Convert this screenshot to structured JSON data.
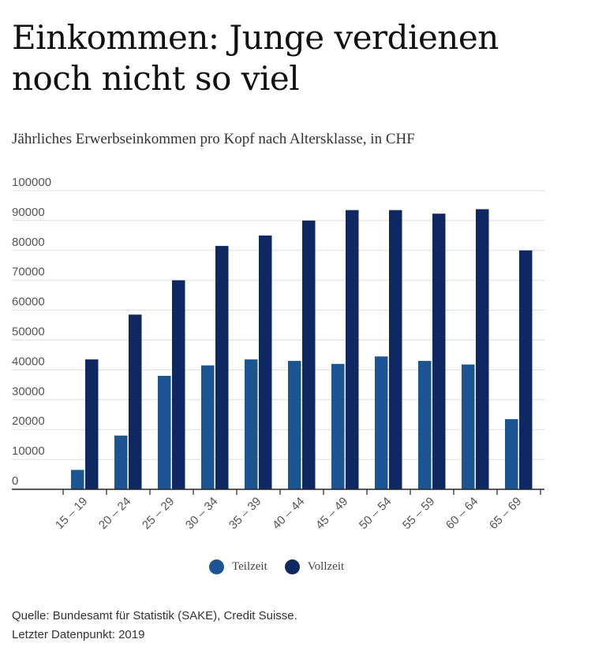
{
  "header": {
    "title": "Einkommen: Junge verdienen noch nicht so viel",
    "subtitle": "Jährliches Erwerbseinkommen pro Kopf nach Altersklasse, in CHF"
  },
  "chart_data": {
    "type": "bar",
    "categories": [
      "15 – 19",
      "20 – 24",
      "25 – 29",
      "30 – 34",
      "35 – 39",
      "40 – 44",
      "45 – 49",
      "50 – 54",
      "55 – 59",
      "60 – 64",
      "65 – 69"
    ],
    "series": [
      {
        "name": "Teilzeit",
        "color": "#1d5592",
        "values": [
          6500,
          18000,
          38000,
          41500,
          43500,
          43000,
          42000,
          44500,
          43000,
          41800,
          23500
        ]
      },
      {
        "name": "Vollzeit",
        "color": "#0f2862",
        "values": [
          43500,
          58500,
          70000,
          81500,
          85000,
          90000,
          93500,
          93500,
          92300,
          93800,
          80000
        ]
      }
    ],
    "yticks": [
      0,
      10000,
      20000,
      30000,
      40000,
      50000,
      60000,
      70000,
      80000,
      90000,
      100000
    ],
    "ylim": [
      0,
      100000
    ],
    "grid": true,
    "legend_position": "bottom-center"
  },
  "legend": {
    "items": [
      {
        "label": "Teilzeit",
        "color": "#1d5592"
      },
      {
        "label": "Vollzeit",
        "color": "#0f2862"
      }
    ]
  },
  "footer": {
    "source": "Quelle: Bundesamt für Statistik (SAKE), Credit Suisse.",
    "last_point": "Letzter Datenpunkt: 2019"
  }
}
